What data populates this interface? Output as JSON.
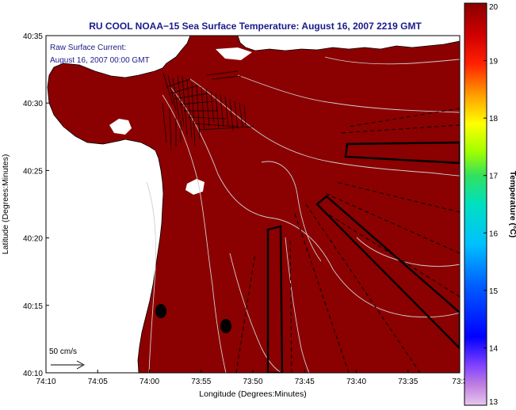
{
  "title": "RU COOL  NOAA−15  Sea Surface Temperature:  August 16, 2007 2219 GMT",
  "annotation": {
    "line1": "Raw Surface Current:",
    "line2": "August 16, 2007 00:00 GMT"
  },
  "scale_label": "50 cm/s",
  "axes": {
    "xlabel": "Longitude (Degrees:Minutes)",
    "ylabel": "Latitude (Degrees:Minutes)",
    "x_ticks": [
      "74:10",
      "74:05",
      "74:00",
      "73:55",
      "73:50",
      "73:45",
      "73:40",
      "73:35",
      "73:3"
    ],
    "y_ticks": [
      "40:35",
      "40:30",
      "40:25",
      "40:20",
      "40:15",
      "40:10"
    ]
  },
  "colorbar": {
    "title": "Temperature (°C)",
    "labels": [
      "20",
      "19",
      "18",
      "17",
      "16",
      "15",
      "14",
      "13"
    ],
    "range": [
      13,
      20
    ]
  },
  "colors": {
    "sea": "#8b0000",
    "land": "#ffffff",
    "title": "#1a1a8c",
    "contour": "#cfcfcf"
  }
}
